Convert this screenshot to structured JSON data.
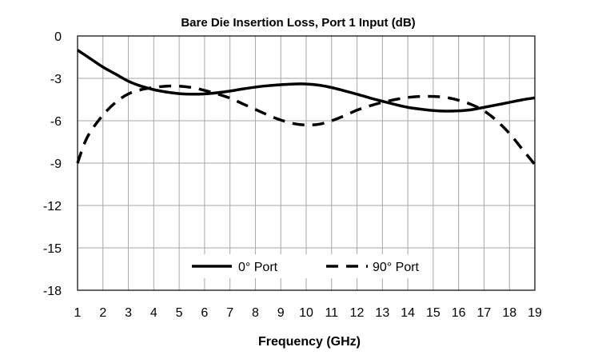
{
  "chart_data": {
    "type": "line",
    "title": "Bare Die Insertion Loss, Port 1 Input (dB)",
    "xlabel": "Frequency (GHz)",
    "ylabel": "",
    "xlim": [
      1,
      19
    ],
    "ylim": [
      -18,
      0
    ],
    "x_ticks": [
      1,
      2,
      3,
      4,
      5,
      6,
      7,
      8,
      9,
      10,
      11,
      12,
      13,
      14,
      15,
      16,
      17,
      18,
      19
    ],
    "x_tick_labels": [
      "1",
      "2",
      "3",
      "4",
      "5",
      "6",
      "7",
      "8",
      "9",
      "10",
      "11",
      "12",
      "13",
      "14",
      "15",
      "16",
      "17",
      "18",
      "19"
    ],
    "y_ticks": [
      0,
      -3,
      -6,
      -9,
      -12,
      -15,
      -18
    ],
    "y_tick_labels": [
      "0",
      "-3",
      "-6",
      "-9",
      "-12",
      "-15",
      "-18"
    ],
    "grid": true,
    "legend_position": "bottom-center",
    "series": [
      {
        "name": "0° Port",
        "style": "solid",
        "color": "#000000",
        "x": [
          1,
          1.5,
          2,
          2.5,
          3,
          3.5,
          4,
          4.5,
          5,
          5.5,
          6,
          6.5,
          7,
          7.5,
          8,
          8.5,
          9,
          9.5,
          10,
          10.5,
          11,
          11.5,
          12,
          12.5,
          13,
          13.5,
          14,
          14.5,
          15,
          15.5,
          16,
          16.5,
          17,
          17.5,
          18,
          18.5,
          19
        ],
        "y": [
          -1.0,
          -1.6,
          -2.2,
          -2.7,
          -3.2,
          -3.55,
          -3.8,
          -3.97,
          -4.08,
          -4.12,
          -4.1,
          -4.02,
          -3.9,
          -3.75,
          -3.62,
          -3.52,
          -3.45,
          -3.4,
          -3.4,
          -3.48,
          -3.65,
          -3.88,
          -4.12,
          -4.38,
          -4.62,
          -4.85,
          -5.05,
          -5.18,
          -5.28,
          -5.32,
          -5.3,
          -5.22,
          -5.05,
          -4.88,
          -4.7,
          -4.52,
          -4.38
        ]
      },
      {
        "name": "90° Port",
        "style": "dashed",
        "color": "#000000",
        "x": [
          1,
          1.25,
          1.5,
          2,
          2.5,
          3,
          3.5,
          4,
          4.5,
          5,
          5.5,
          6,
          6.5,
          7,
          7.5,
          8,
          8.5,
          9,
          9.5,
          10,
          10.5,
          11,
          11.5,
          12,
          12.5,
          13,
          13.5,
          14,
          14.5,
          15,
          15.5,
          16,
          16.5,
          17,
          17.5,
          18,
          18.5,
          19
        ],
        "y": [
          -9.0,
          -7.7,
          -6.8,
          -5.6,
          -4.7,
          -4.1,
          -3.8,
          -3.65,
          -3.55,
          -3.55,
          -3.65,
          -3.85,
          -4.1,
          -4.4,
          -4.8,
          -5.2,
          -5.6,
          -5.95,
          -6.2,
          -6.3,
          -6.25,
          -6.0,
          -5.65,
          -5.25,
          -4.95,
          -4.7,
          -4.5,
          -4.35,
          -4.28,
          -4.28,
          -4.35,
          -4.55,
          -4.85,
          -5.3,
          -6.0,
          -6.9,
          -8.0,
          -9.1
        ]
      }
    ]
  }
}
